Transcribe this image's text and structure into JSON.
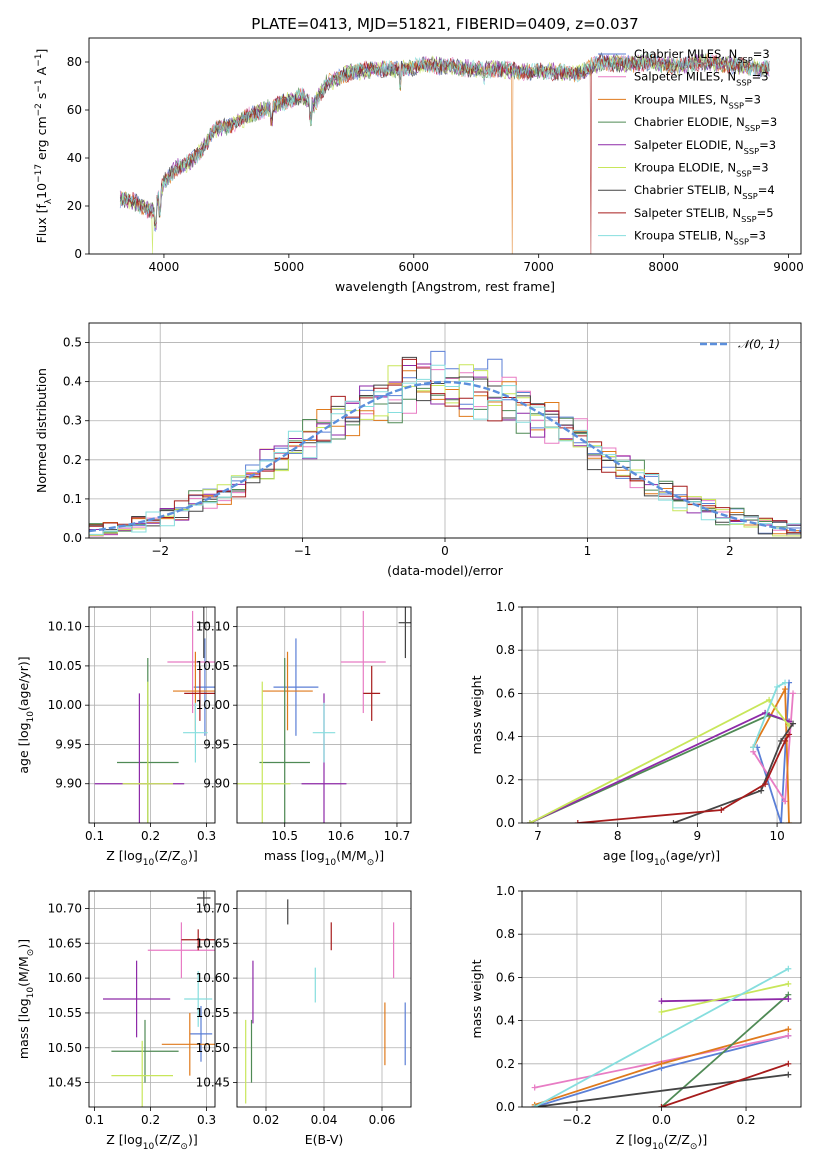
{
  "colors": {
    "Chabrier MILES": "#5b7fd6",
    "Salpeter MILES": "#e87cc4",
    "Kroupa MILES": "#df7a1c",
    "Chabrier ELODIE": "#4f8a55",
    "Salpeter ELODIE": "#8e2aa8",
    "Kroupa ELODIE": "#c8e65a",
    "Chabrier STELIB": "#444444",
    "Salpeter STELIB": "#a61c1c",
    "Kroupa STELIB": "#86dede",
    "normal": "#5b8fdc",
    "grid": "#b0b0b0"
  },
  "chart_data": [
    {
      "id": "spectrum",
      "type": "line",
      "title": "PLATE=0413, MJD=51821, FIBERID=0409, z=0.037",
      "xlabel": "wavelength [Angstrom, rest frame]",
      "ylabel": "Flux [fλ10⁻¹⁷ erg cm⁻² s⁻¹ A⁻¹]",
      "xlim": [
        3400,
        9100
      ],
      "ylim": [
        0,
        90
      ],
      "xticks": [
        4000,
        5000,
        6000,
        7000,
        8000,
        9000
      ],
      "yticks": [
        0,
        20,
        40,
        60,
        80
      ],
      "grid": false,
      "legend_placement": "upper right",
      "legend": [
        {
          "model": "Chabrier MILES",
          "label": "Chabrier MILES, N_SSP=3"
        },
        {
          "model": "Salpeter MILES",
          "label": "Salpeter MILES, N_SSP=3"
        },
        {
          "model": "Kroupa MILES",
          "label": "Kroupa MILES, N_SSP=3"
        },
        {
          "model": "Chabrier ELODIE",
          "label": "Chabrier ELODIE, N_SSP=3"
        },
        {
          "model": "Salpeter ELODIE",
          "label": "Salpeter ELODIE, N_SSP=3"
        },
        {
          "model": "Kroupa ELODIE",
          "label": "Kroupa ELODIE, N_SSP=3"
        },
        {
          "model": "Chabrier STELIB",
          "label": "Chabrier STELIB, N_SSP=4"
        },
        {
          "model": "Salpeter STELIB",
          "label": "Salpeter STELIB, N_SSP=5"
        },
        {
          "model": "Kroupa STELIB",
          "label": "Kroupa STELIB, N_SSP=3"
        }
      ],
      "continuum": {
        "x": [
          3650,
          3750,
          3850,
          3920,
          4000,
          4100,
          4200,
          4300,
          4400,
          4500,
          4700,
          4900,
          5100,
          5200,
          5300,
          5500,
          5700,
          5900,
          6100,
          6300,
          6500,
          6700,
          6900,
          7100,
          7300,
          7500,
          7700,
          7900,
          8100,
          8300,
          8500,
          8700,
          8850
        ],
        "y": [
          23,
          22,
          19,
          18,
          30,
          36,
          38,
          43,
          52,
          53,
          58,
          62,
          66,
          62,
          71,
          76,
          77,
          77,
          79,
          78,
          77,
          77,
          76,
          76,
          75,
          80,
          79,
          80,
          78,
          80,
          79,
          78,
          77
        ]
      },
      "spikes": [
        {
          "model": "Kroupa ELODIE",
          "x": 3910,
          "y": 0
        },
        {
          "model": "Kroupa MILES",
          "x": 6790,
          "y": 0
        },
        {
          "model": "Salpeter STELIB",
          "x": 7420,
          "y": 0
        }
      ]
    },
    {
      "id": "residuals",
      "type": "histogram",
      "xlabel": "(data-model)/error",
      "ylabel": "Normed distribution",
      "xlim": [
        -2.5,
        2.5
      ],
      "ylim": [
        0,
        0.55
      ],
      "xticks": [
        -2,
        -1,
        0,
        1,
        2
      ],
      "yticks": [
        0.0,
        0.1,
        0.2,
        0.3,
        0.4,
        0.5
      ],
      "grid": true,
      "bin_width": 0.1,
      "legend_placement": "upper right",
      "normal_curve": {
        "label": "𝒩(0, 1)",
        "mean": 0,
        "sigma": 1
      }
    },
    {
      "id": "age_vs_Z",
      "type": "errorbar",
      "xlabel": "Z [log10(Z/Z⊙)]",
      "ylabel": "age  [log10(age/yr)]",
      "xlim": [
        0.09,
        0.315
      ],
      "ylim": [
        9.85,
        10.125
      ],
      "xticks": [
        0.1,
        0.2,
        0.3
      ],
      "yticks": [
        9.9,
        9.95,
        10.0,
        10.05,
        10.1
      ],
      "grid": true,
      "points": [
        {
          "model": "Chabrier MILES",
          "x": 0.297,
          "xerr": 0.02,
          "y": 10.023,
          "yerr": 0.062
        },
        {
          "model": "Salpeter MILES",
          "x": 0.275,
          "xerr": 0.045,
          "y": 10.055,
          "yerr": 0.065
        },
        {
          "model": "Kroupa MILES",
          "x": 0.28,
          "xerr": 0.04,
          "y": 10.018,
          "yerr": 0.05
        },
        {
          "model": "Chabrier ELODIE",
          "x": 0.195,
          "xerr": 0.055,
          "y": 9.927,
          "yerr": 0.133
        },
        {
          "model": "Salpeter ELODIE",
          "x": 0.18,
          "xerr": 0.08,
          "y": 9.9,
          "yerr": 0.115
        },
        {
          "model": "Kroupa ELODIE",
          "x": 0.195,
          "xerr": 0.045,
          "y": 9.9,
          "yerr": 0.13
        },
        {
          "model": "Chabrier STELIB",
          "x": 0.295,
          "xerr": 0.01,
          "y": 10.105,
          "yerr": 0.045
        },
        {
          "model": "Salpeter STELIB",
          "x": 0.288,
          "xerr": 0.028,
          "y": 10.015,
          "yerr": 0.035
        },
        {
          "model": "Kroupa STELIB",
          "x": 0.28,
          "xerr": 0.022,
          "y": 9.965,
          "yerr": 0.038
        }
      ]
    },
    {
      "id": "age_vs_mass",
      "type": "errorbar",
      "xlabel": "mass [log10(M/M⊙)]",
      "ylabel": "",
      "xlim": [
        10.415,
        10.725
      ],
      "ylim": [
        9.85,
        10.125
      ],
      "xticks": [
        10.5,
        10.6,
        10.7
      ],
      "yticks": [
        9.9,
        9.95,
        10.0,
        10.05,
        10.1
      ],
      "grid": true,
      "points": [
        {
          "model": "Chabrier MILES",
          "x": 10.52,
          "xerr": 0.04,
          "y": 10.023,
          "yerr": 0.062
        },
        {
          "model": "Salpeter MILES",
          "x": 10.64,
          "xerr": 0.04,
          "y": 10.055,
          "yerr": 0.065
        },
        {
          "model": "Kroupa MILES",
          "x": 10.505,
          "xerr": 0.045,
          "y": 10.018,
          "yerr": 0.05
        },
        {
          "model": "Chabrier ELODIE",
          "x": 10.5,
          "xerr": 0.045,
          "y": 9.927,
          "yerr": 0.133
        },
        {
          "model": "Salpeter ELODIE",
          "x": 10.57,
          "xerr": 0.04,
          "y": 9.9,
          "yerr": 0.115
        },
        {
          "model": "Kroupa ELODIE",
          "x": 10.46,
          "xerr": 0.05,
          "y": 9.9,
          "yerr": 0.13
        },
        {
          "model": "Chabrier STELIB",
          "x": 10.715,
          "xerr": 0.012,
          "y": 10.105,
          "yerr": 0.045
        },
        {
          "model": "Salpeter STELIB",
          "x": 10.655,
          "xerr": 0.015,
          "y": 10.015,
          "yerr": 0.035
        },
        {
          "model": "Kroupa STELIB",
          "x": 10.57,
          "xerr": 0.02,
          "y": 9.965,
          "yerr": 0.038
        }
      ]
    },
    {
      "id": "massweight_vs_age",
      "type": "line",
      "xlabel": "age  [log10(age/yr)]",
      "ylabel": "mass weight",
      "xlim": [
        6.8,
        10.3
      ],
      "ylim": [
        0,
        1
      ],
      "xticks": [
        7,
        8,
        9,
        10
      ],
      "yticks": [
        0.0,
        0.2,
        0.4,
        0.6,
        0.8,
        1.0
      ],
      "grid": true,
      "series": [
        {
          "model": "Chabrier MILES",
          "x": [
            9.75,
            10.05,
            10.15
          ],
          "y": [
            0.35,
            0.0,
            0.65
          ]
        },
        {
          "model": "Salpeter MILES",
          "x": [
            9.7,
            10.1,
            10.2
          ],
          "y": [
            0.33,
            0.1,
            0.6
          ]
        },
        {
          "model": "Kroupa MILES",
          "x": [
            9.7,
            10.1,
            10.15
          ],
          "y": [
            0.35,
            0.62,
            0.0
          ]
        },
        {
          "model": "Chabrier ELODIE",
          "x": [
            6.9,
            9.9,
            10.15
          ],
          "y": [
            0.0,
            0.5,
            0.47
          ]
        },
        {
          "model": "Salpeter ELODIE",
          "x": [
            6.9,
            9.85,
            10.15
          ],
          "y": [
            0.0,
            0.51,
            0.47
          ]
        },
        {
          "model": "Kroupa ELODIE",
          "x": [
            6.9,
            9.9,
            10.15
          ],
          "y": [
            0.0,
            0.57,
            0.45
          ]
        },
        {
          "model": "Chabrier STELIB",
          "x": [
            8.7,
            9.8,
            10.05,
            10.2
          ],
          "y": [
            0.0,
            0.15,
            0.38,
            0.46
          ]
        },
        {
          "model": "Salpeter STELIB",
          "x": [
            7.5,
            9.3,
            9.85,
            10.1,
            10.15
          ],
          "y": [
            0.0,
            0.06,
            0.18,
            0.38,
            0.41
          ]
        },
        {
          "model": "Kroupa STELIB",
          "x": [
            9.7,
            10.0,
            10.1
          ],
          "y": [
            0.35,
            0.63,
            0.65
          ]
        }
      ]
    },
    {
      "id": "mass_vs_Z",
      "type": "errorbar",
      "xlabel": "Z [log10(Z/Z⊙)]",
      "ylabel": "mass [log10(M/M⊙)]",
      "xlim": [
        0.09,
        0.315
      ],
      "ylim": [
        10.415,
        10.725
      ],
      "xticks": [
        0.1,
        0.2,
        0.3
      ],
      "yticks": [
        10.45,
        10.5,
        10.55,
        10.6,
        10.65,
        10.7
      ],
      "grid": true,
      "points": [
        {
          "model": "Chabrier MILES",
          "x": 0.29,
          "xerr": 0.02,
          "y": 10.52,
          "yerr": 0.04
        },
        {
          "model": "Salpeter MILES",
          "x": 0.255,
          "xerr": 0.06,
          "y": 10.64,
          "yerr": 0.04
        },
        {
          "model": "Kroupa MILES",
          "x": 0.27,
          "xerr": 0.05,
          "y": 10.505,
          "yerr": 0.045
        },
        {
          "model": "Chabrier ELODIE",
          "x": 0.19,
          "xerr": 0.06,
          "y": 10.495,
          "yerr": 0.045
        },
        {
          "model": "Salpeter ELODIE",
          "x": 0.175,
          "xerr": 0.06,
          "y": 10.57,
          "yerr": 0.055
        },
        {
          "model": "Kroupa ELODIE",
          "x": 0.185,
          "xerr": 0.055,
          "y": 10.46,
          "yerr": 0.05
        },
        {
          "model": "Chabrier STELIB",
          "x": 0.295,
          "xerr": 0.012,
          "y": 10.715,
          "yerr": 0.012
        },
        {
          "model": "Salpeter STELIB",
          "x": 0.285,
          "xerr": 0.03,
          "y": 10.655,
          "yerr": 0.015
        },
        {
          "model": "Kroupa STELIB",
          "x": 0.285,
          "xerr": 0.025,
          "y": 10.57,
          "yerr": 0.04
        }
      ]
    },
    {
      "id": "mass_vs_ebv",
      "type": "errorbar",
      "xlabel": "E(B-V)",
      "ylabel": "",
      "xlim": [
        0.01,
        0.07
      ],
      "ylim": [
        10.415,
        10.725
      ],
      "xticks": [
        0.02,
        0.04,
        0.06
      ],
      "yticks": [
        10.45,
        10.5,
        10.55,
        10.6,
        10.65,
        10.7
      ],
      "grid": true,
      "points": [
        {
          "model": "Chabrier MILES",
          "x": 0.068,
          "xerr": 0,
          "y": 10.52,
          "yerr": 0.045
        },
        {
          "model": "Salpeter MILES",
          "x": 0.064,
          "xerr": 0,
          "y": 10.64,
          "yerr": 0.04
        },
        {
          "model": "Kroupa MILES",
          "x": 0.061,
          "xerr": 0,
          "y": 10.52,
          "yerr": 0.045
        },
        {
          "model": "Chabrier ELODIE",
          "x": 0.015,
          "xerr": 0,
          "y": 10.495,
          "yerr": 0.045
        },
        {
          "model": "Salpeter ELODIE",
          "x": 0.0155,
          "xerr": 0,
          "y": 10.58,
          "yerr": 0.045
        },
        {
          "model": "Kroupa ELODIE",
          "x": 0.013,
          "xerr": 0,
          "y": 10.48,
          "yerr": 0.06
        },
        {
          "model": "Chabrier STELIB",
          "x": 0.0275,
          "xerr": 0,
          "y": 10.695,
          "yerr": 0.018
        },
        {
          "model": "Salpeter STELIB",
          "x": 0.0425,
          "xerr": 0,
          "y": 10.66,
          "yerr": 0.02
        },
        {
          "model": "Kroupa STELIB",
          "x": 0.037,
          "xerr": 0,
          "y": 10.59,
          "yerr": 0.025
        }
      ]
    },
    {
      "id": "massweight_vs_Z",
      "type": "line",
      "xlabel": "Z [log10(Z/Z⊙)]",
      "ylabel": "mass weight",
      "xlim": [
        -0.33,
        0.33
      ],
      "ylim": [
        0,
        1
      ],
      "xticks": [
        -0.2,
        0.0,
        0.2
      ],
      "yticks": [
        0.0,
        0.2,
        0.4,
        0.6,
        0.8,
        1.0
      ],
      "grid": true,
      "series": [
        {
          "model": "Chabrier MILES",
          "x": [
            -0.3,
            0.0,
            0.3
          ],
          "y": [
            0.0,
            0.18,
            0.33
          ]
        },
        {
          "model": "Salpeter MILES",
          "x": [
            -0.3,
            0.3
          ],
          "y": [
            0.09,
            0.33
          ]
        },
        {
          "model": "Kroupa MILES",
          "x": [
            -0.3,
            0.0,
            0.3
          ],
          "y": [
            0.01,
            0.2,
            0.36
          ]
        },
        {
          "model": "Chabrier ELODIE",
          "x": [
            0.0,
            0.3
          ],
          "y": [
            0.0,
            0.52
          ]
        },
        {
          "model": "Salpeter ELODIE",
          "x": [
            0.0,
            0.3
          ],
          "y": [
            0.49,
            0.5
          ]
        },
        {
          "model": "Kroupa ELODIE",
          "x": [
            0.0,
            0.3
          ],
          "y": [
            0.44,
            0.57
          ]
        },
        {
          "model": "Chabrier STELIB",
          "x": [
            -0.3,
            0.3
          ],
          "y": [
            0.0,
            0.15
          ]
        },
        {
          "model": "Salpeter STELIB",
          "x": [
            0.0,
            0.3
          ],
          "y": [
            0.0,
            0.2
          ]
        },
        {
          "model": "Kroupa STELIB",
          "x": [
            -0.3,
            0.3
          ],
          "y": [
            0.0,
            0.64
          ]
        }
      ]
    }
  ]
}
